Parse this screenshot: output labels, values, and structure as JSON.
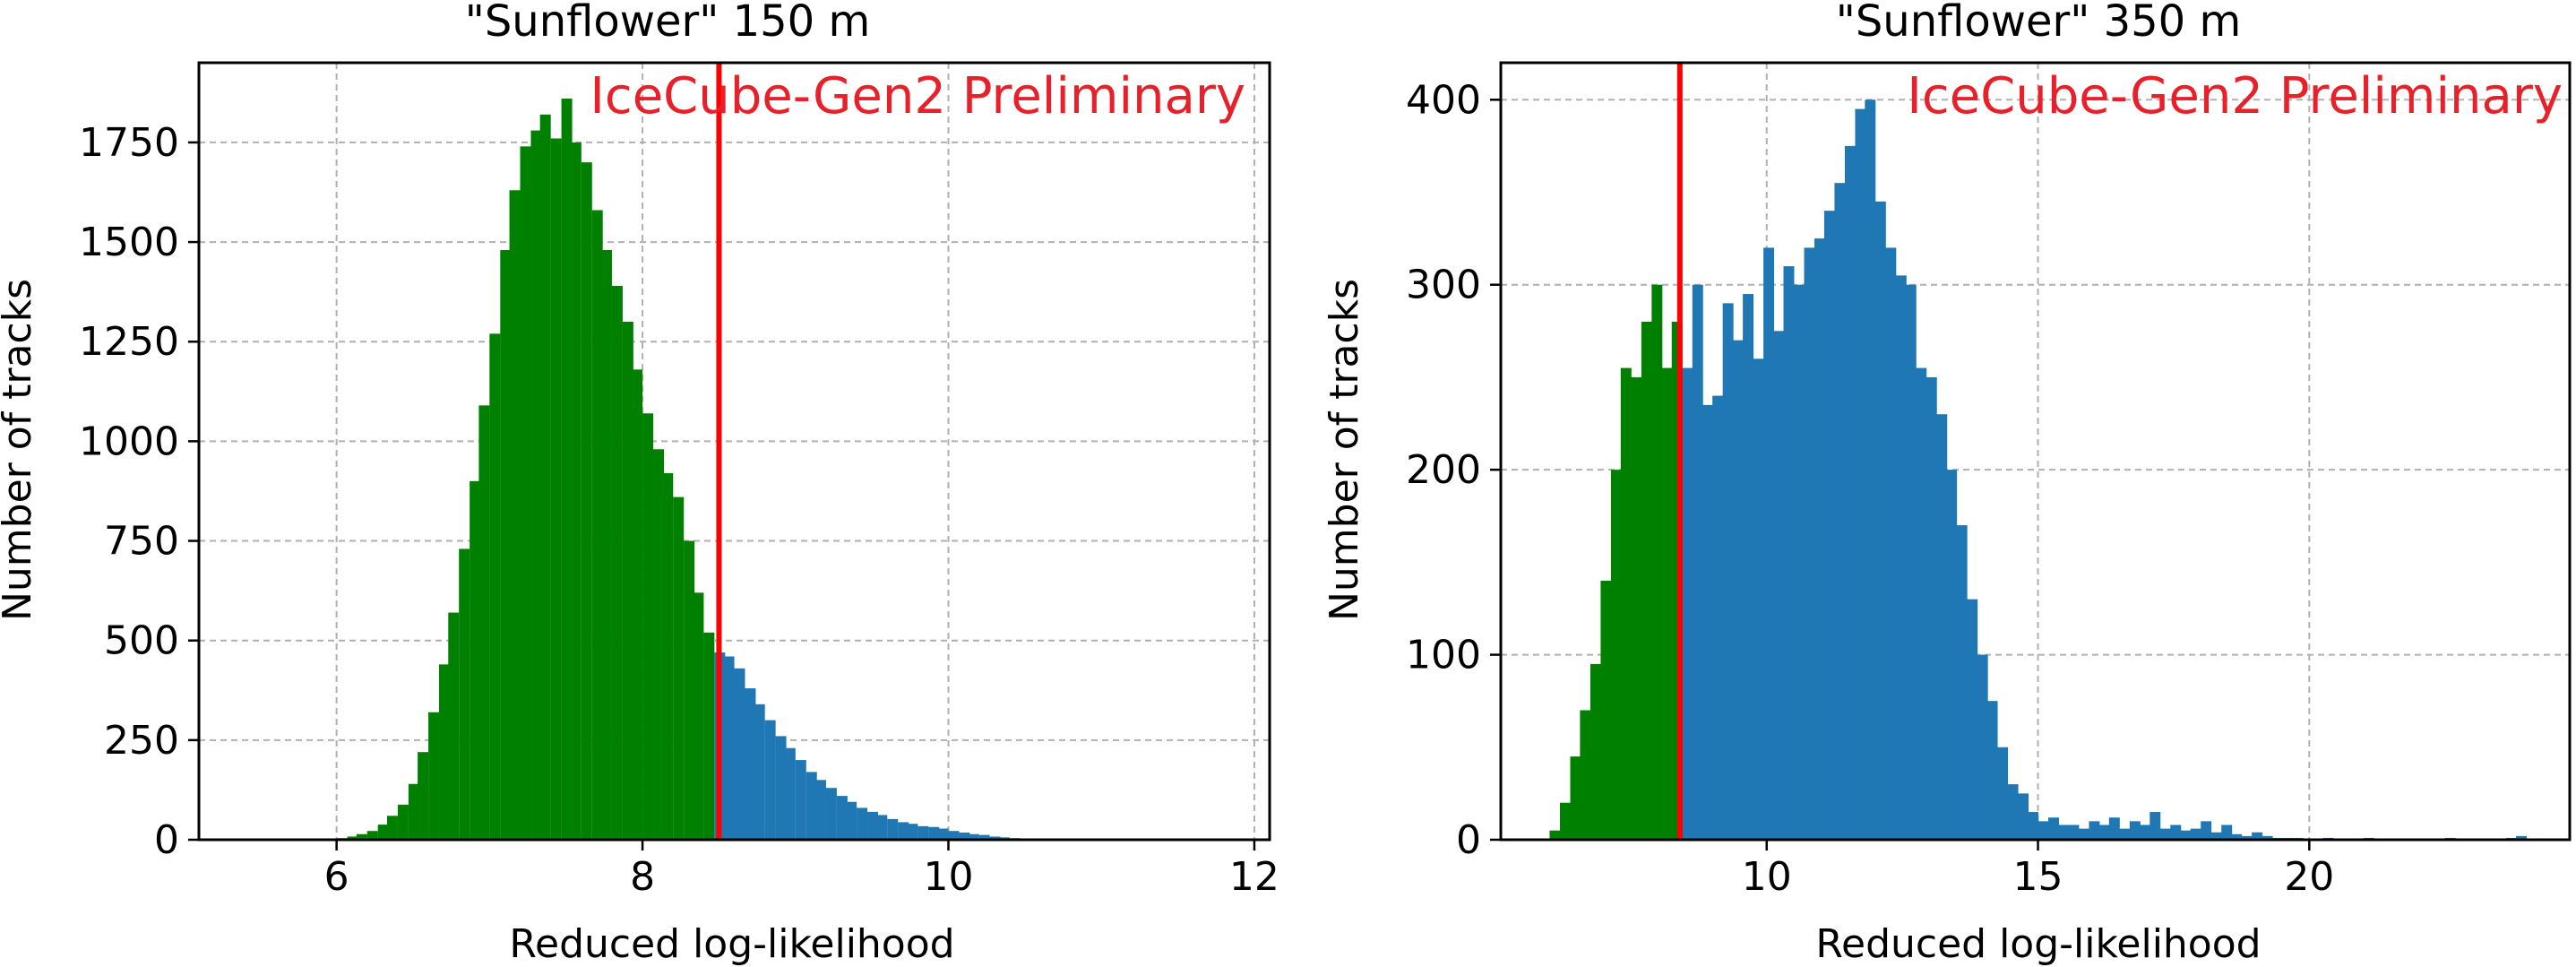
{
  "chart_data": [
    {
      "type": "bar",
      "title": "\"Sunflower\" 150 m",
      "xlabel": "Reduced log-likelihood",
      "ylabel": "Number of tracks",
      "annotation": "IceCube-Gen2 Preliminary",
      "xlim": [
        5.1,
        12.1
      ],
      "ylim": [
        0,
        1950
      ],
      "xticks": [
        6,
        8,
        10,
        12
      ],
      "yticks": [
        0,
        250,
        500,
        750,
        1000,
        1250,
        1500,
        1750
      ],
      "grid": true,
      "cut_line_x": 8.5,
      "colors": {
        "below_cut": "#008000",
        "above_cut": "#1f77b4",
        "cut_line": "#ff0000",
        "annotation": "#e8202a"
      },
      "bin_width": 0.0667,
      "bin_starts": [
        5.93,
        6.0,
        6.07,
        6.13,
        6.2,
        6.27,
        6.33,
        6.4,
        6.47,
        6.53,
        6.6,
        6.67,
        6.73,
        6.8,
        6.87,
        6.93,
        7.0,
        7.07,
        7.13,
        7.2,
        7.27,
        7.33,
        7.4,
        7.47,
        7.53,
        7.6,
        7.67,
        7.73,
        7.8,
        7.87,
        7.93,
        8.0,
        8.07,
        8.13,
        8.2,
        8.27,
        8.33,
        8.4,
        8.47,
        8.53,
        8.6,
        8.67,
        8.73,
        8.8,
        8.87,
        8.93,
        9.0,
        9.07,
        9.13,
        9.2,
        9.27,
        9.33,
        9.4,
        9.47,
        9.53,
        9.6,
        9.67,
        9.73,
        9.8,
        9.87,
        9.93,
        10.0,
        10.07,
        10.13,
        10.2,
        10.27,
        10.33,
        10.4,
        10.47
      ],
      "counts": [
        2,
        4,
        8,
        14,
        22,
        38,
        60,
        88,
        140,
        220,
        320,
        440,
        570,
        730,
        900,
        1090,
        1270,
        1480,
        1630,
        1740,
        1780,
        1820,
        1760,
        1860,
        1750,
        1700,
        1580,
        1480,
        1390,
        1300,
        1180,
        1070,
        980,
        920,
        860,
        750,
        620,
        520,
        470,
        460,
        430,
        380,
        340,
        300,
        260,
        230,
        200,
        170,
        150,
        130,
        110,
        95,
        80,
        70,
        62,
        52,
        44,
        40,
        34,
        32,
        28,
        22,
        18,
        14,
        12,
        8,
        6,
        4,
        2
      ]
    },
    {
      "type": "bar",
      "title": "\"Sunflower\" 350 m",
      "xlabel": "Reduced log-likelihood",
      "ylabel": "Number of tracks",
      "annotation": "IceCube-Gen2 Preliminary",
      "xlim": [
        5.1,
        24.8
      ],
      "ylim": [
        0,
        420
      ],
      "xticks": [
        10,
        15,
        20
      ],
      "yticks": [
        0,
        100,
        200,
        300,
        400
      ],
      "grid": true,
      "cut_line_x": 8.4,
      "colors": {
        "below_cut": "#008000",
        "above_cut": "#1f77b4",
        "cut_line": "#ff0000",
        "annotation": "#e8202a"
      },
      "bin_width": 0.1875,
      "bin_starts": [
        6.0,
        6.19,
        6.38,
        6.56,
        6.75,
        6.94,
        7.13,
        7.31,
        7.5,
        7.69,
        7.88,
        8.06,
        8.25,
        8.44,
        8.63,
        8.81,
        9.0,
        9.19,
        9.38,
        9.56,
        9.75,
        9.94,
        10.13,
        10.31,
        10.5,
        10.69,
        10.88,
        11.06,
        11.25,
        11.44,
        11.63,
        11.81,
        12.0,
        12.19,
        12.38,
        12.56,
        12.75,
        12.94,
        13.13,
        13.31,
        13.5,
        13.69,
        13.88,
        14.06,
        14.25,
        14.44,
        14.63,
        14.81,
        15.0,
        15.19,
        15.38,
        15.56,
        15.75,
        15.94,
        16.13,
        16.31,
        16.5,
        16.69,
        16.88,
        17.06,
        17.25,
        17.44,
        17.63,
        17.81,
        18.0,
        18.19,
        18.38,
        18.56,
        18.75,
        18.94,
        19.13,
        19.31,
        19.5,
        19.69,
        19.88,
        20.06,
        20.25,
        20.44,
        20.63,
        20.81,
        21.0,
        21.19,
        21.38,
        21.56,
        21.75,
        21.94,
        22.13,
        22.31,
        22.5,
        22.69,
        22.88,
        23.06,
        23.25,
        23.44,
        23.63,
        23.81
      ],
      "counts": [
        5,
        20,
        45,
        70,
        95,
        140,
        200,
        255,
        250,
        280,
        300,
        255,
        280,
        255,
        300,
        235,
        240,
        290,
        270,
        295,
        260,
        320,
        275,
        310,
        300,
        320,
        325,
        340,
        355,
        375,
        395,
        400,
        345,
        320,
        305,
        300,
        255,
        250,
        230,
        200,
        170,
        130,
        100,
        75,
        50,
        30,
        25,
        15,
        10,
        12,
        8,
        8,
        6,
        10,
        8,
        12,
        6,
        10,
        8,
        15,
        6,
        8,
        5,
        6,
        10,
        4,
        8,
        3,
        2,
        4,
        2,
        1,
        1,
        1,
        0,
        0,
        1,
        0,
        0,
        0,
        1,
        0,
        0,
        0,
        0,
        0,
        0,
        0,
        1,
        0,
        0,
        0,
        0,
        0,
        1,
        2
      ]
    }
  ]
}
